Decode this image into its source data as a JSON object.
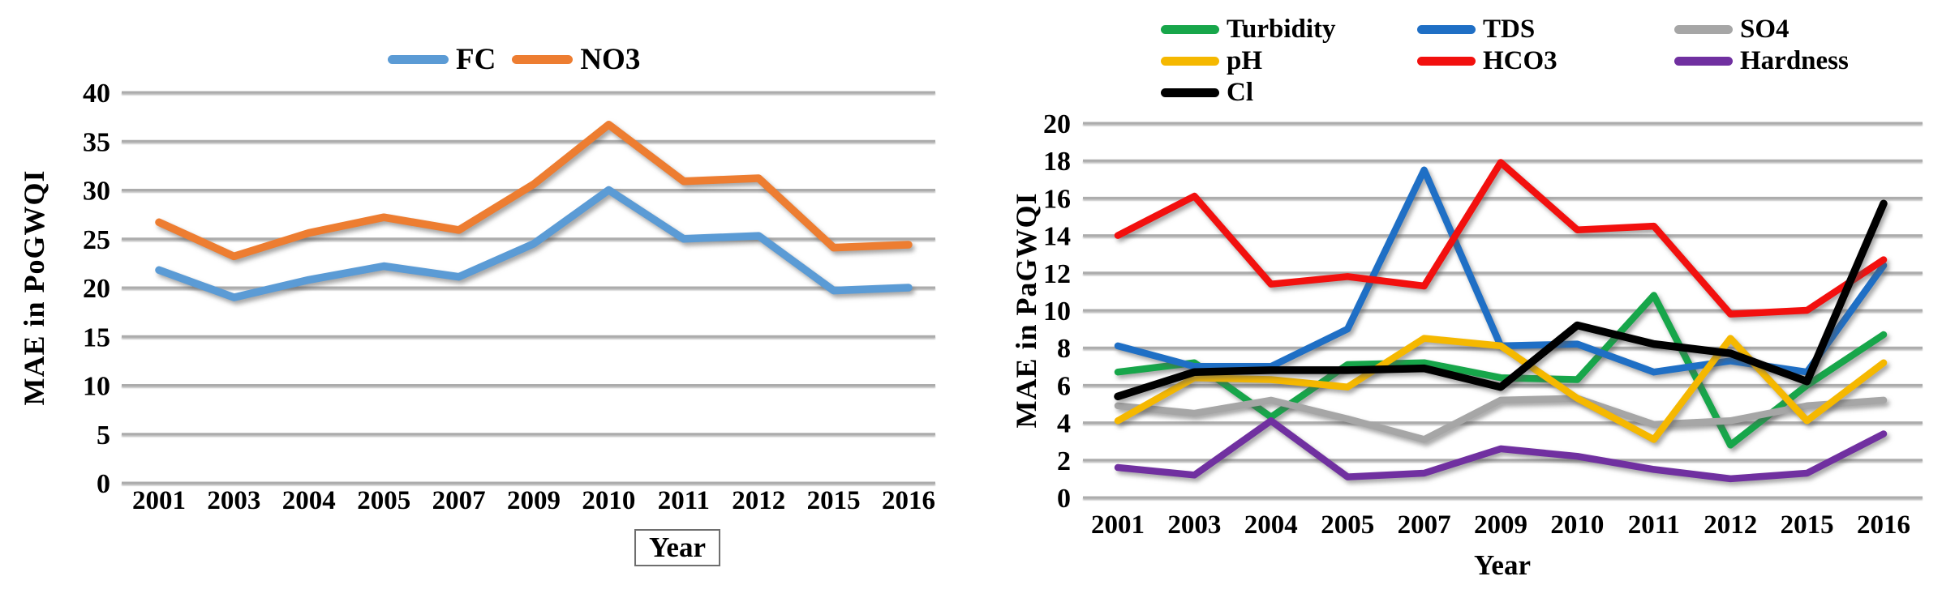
{
  "page": {
    "background": "#ffffff"
  },
  "chart_data": [
    {
      "type": "line",
      "panel": "left",
      "title": "",
      "ylabel": "MAE in PoGWQI",
      "xlabel": "Year",
      "xlabel_boxed": true,
      "grid": true,
      "legend_position": "top-center",
      "categories": [
        "2001",
        "2003",
        "2004",
        "2005",
        "2007",
        "2009",
        "2010",
        "2011",
        "2012",
        "2015",
        "2016"
      ],
      "y_ticks": [
        "40",
        "35",
        "30",
        "25",
        "20",
        "15",
        "10",
        "5",
        "0"
      ],
      "ylim": [
        0,
        40
      ],
      "ytick_step": 5,
      "series": [
        {
          "name": "FC",
          "color": "#5B9BD5",
          "values": [
            21.8,
            19.0,
            20.8,
            22.2,
            21.1,
            24.5,
            30.0,
            25.0,
            25.3,
            19.7,
            20.0
          ]
        },
        {
          "name": "NO3",
          "color": "#ED7D31",
          "values": [
            26.7,
            23.2,
            25.6,
            27.2,
            25.9,
            30.6,
            36.7,
            30.9,
            31.2,
            24.1,
            24.4
          ]
        }
      ]
    },
    {
      "type": "line",
      "panel": "right",
      "title": "",
      "ylabel": "MAE in PaGWQI",
      "xlabel": "Year",
      "xlabel_boxed": false,
      "grid": true,
      "legend_position": "top-three-columns",
      "categories": [
        "2001",
        "2003",
        "2004",
        "2005",
        "2007",
        "2009",
        "2010",
        "2011",
        "2012",
        "2015",
        "2016"
      ],
      "y_ticks": [
        "20",
        "18",
        "16",
        "14",
        "12",
        "10",
        "8",
        "6",
        "4",
        "2",
        "0"
      ],
      "ylim": [
        0,
        20
      ],
      "ytick_step": 2,
      "series": [
        {
          "name": "Turbidity",
          "color": "#17A64A",
          "values": [
            6.7,
            7.2,
            4.3,
            7.1,
            7.2,
            6.4,
            6.3,
            10.8,
            2.8,
            6.0,
            8.7
          ]
        },
        {
          "name": "TDS",
          "color": "#1F6FC5",
          "values": [
            8.1,
            7.0,
            7.0,
            9.0,
            17.5,
            8.1,
            8.2,
            6.7,
            7.3,
            6.7,
            12.4
          ]
        },
        {
          "name": "SO4",
          "color": "#A6A6A6",
          "values": [
            4.9,
            4.5,
            5.2,
            4.2,
            3.1,
            5.2,
            5.3,
            3.9,
            4.1,
            4.9,
            5.2
          ]
        },
        {
          "name": "pH",
          "color": "#F5B800",
          "values": [
            4.1,
            6.4,
            6.3,
            5.9,
            8.5,
            8.1,
            5.3,
            3.1,
            8.5,
            4.1,
            7.2
          ]
        },
        {
          "name": "HCO3",
          "color": "#F2100E",
          "values": [
            14.0,
            16.1,
            11.4,
            11.8,
            11.3,
            17.9,
            14.3,
            14.5,
            9.8,
            10.0,
            12.7
          ]
        },
        {
          "name": "Hardness",
          "color": "#7030A0",
          "values": [
            1.6,
            1.2,
            4.1,
            1.1,
            1.3,
            2.6,
            2.2,
            1.5,
            1.0,
            1.3,
            3.4
          ]
        },
        {
          "name": "Cl",
          "color": "#000000",
          "values": [
            5.4,
            6.7,
            6.8,
            6.8,
            6.9,
            5.9,
            9.2,
            8.2,
            7.7,
            6.2,
            15.7
          ]
        }
      ]
    }
  ]
}
